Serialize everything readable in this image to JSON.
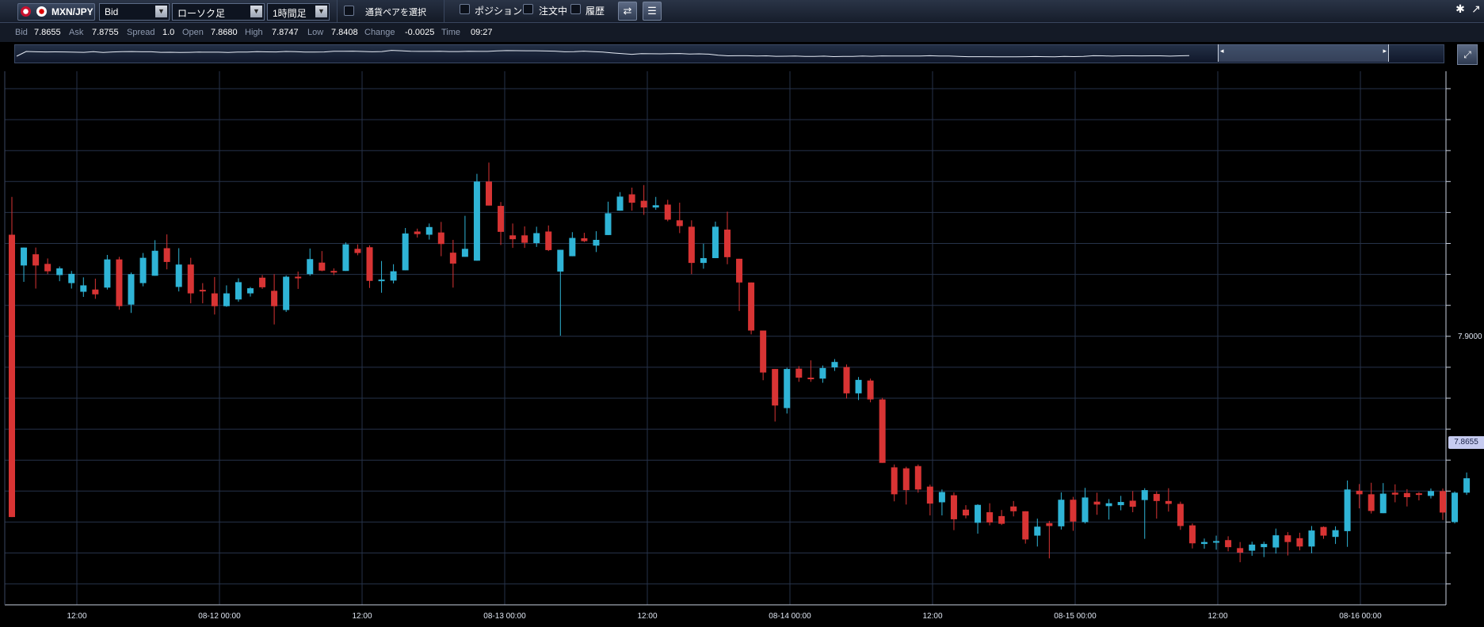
{
  "toolbar": {
    "pair": "MXN/JPY",
    "price_type": "Bid",
    "chart_type": "ローソク足",
    "timeframe": "1時間足",
    "select_pair_label": "通貨ペアを選択",
    "position_label": "ポジション",
    "orders_label": "注文中",
    "history_label": "履歴"
  },
  "info": {
    "bid_label": "Bid",
    "bid": "7.8655",
    "ask_label": "Ask",
    "ask": "7.8755",
    "spread_label": "Spread",
    "spread": "1.0",
    "open_label": "Open",
    "open": "7.8680",
    "high_label": "High",
    "high": "7.8747",
    "low_label": "Low",
    "low": "7.8408",
    "change_label": "Change",
    "change": "-0.0025",
    "time_label": "Time",
    "time": "09:27"
  },
  "axis": {
    "price_label": "7.9000",
    "current_price": "7.8655"
  },
  "colors": {
    "up": "#2fb4d6",
    "down": "#d83434",
    "grid": "#26324a"
  },
  "chart_data": {
    "type": "candlestick",
    "x_labels": [
      "12:00",
      "08-12 00:00",
      "12:00",
      "08-13 00:00",
      "12:00",
      "08-14 00:00",
      "12:00",
      "08-15 00:00",
      "12:00",
      "08-16 00:00"
    ],
    "y_labeled_tick": 7.9,
    "ylim": [
      7.822,
      7.99
    ],
    "candles": [
      [
        7.9375,
        7.8494,
        7.9493,
        7.8494
      ],
      [
        7.9279,
        7.9335,
        7.9335,
        7.9228
      ],
      [
        7.9314,
        7.9279,
        7.9335,
        7.9207
      ],
      [
        7.9284,
        7.9261,
        7.9301,
        7.9252
      ],
      [
        7.9249,
        7.927,
        7.9276,
        7.923
      ],
      [
        7.9224,
        7.9253,
        7.9262,
        7.9207
      ],
      [
        7.9197,
        7.9217,
        7.9242,
        7.9181
      ],
      [
        7.9204,
        7.9189,
        7.9238,
        7.9175
      ],
      [
        7.921,
        7.9298,
        7.9312,
        7.9204
      ],
      [
        7.9298,
        7.9152,
        7.9306,
        7.9141
      ],
      [
        7.9157,
        7.9252,
        7.9257,
        7.9131
      ],
      [
        7.9224,
        7.9303,
        7.9318,
        7.9214
      ],
      [
        7.9247,
        7.9325,
        7.9358,
        7.9247
      ],
      [
        7.9333,
        7.929,
        7.9376,
        7.9267
      ],
      [
        7.9212,
        7.9282,
        7.9333,
        7.9198
      ],
      [
        7.9282,
        7.9192,
        7.9303,
        7.9161
      ],
      [
        7.9203,
        7.9199,
        7.9224,
        7.9161
      ],
      [
        7.9192,
        7.9152,
        7.9243,
        7.9126
      ],
      [
        7.9152,
        7.9192,
        7.9217,
        7.915
      ],
      [
        7.9173,
        7.9227,
        7.9239,
        7.9166
      ],
      [
        7.9192,
        7.9208,
        7.9212,
        7.9182
      ],
      [
        7.9241,
        7.9211,
        7.9249,
        7.9206
      ],
      [
        7.92,
        7.9152,
        7.9252,
        7.9095
      ],
      [
        7.914,
        7.9244,
        7.9248,
        7.9134
      ],
      [
        7.9244,
        7.9241,
        7.926,
        7.9206
      ],
      [
        7.9252,
        7.9299,
        7.9332,
        7.9247
      ],
      [
        7.9288,
        7.9263,
        7.9324,
        7.9261
      ],
      [
        7.9262,
        7.9259,
        7.927,
        7.9249
      ],
      [
        7.9262,
        7.9345,
        7.9351,
        7.9262
      ],
      [
        7.9331,
        7.9318,
        7.9345,
        7.9311
      ],
      [
        7.9336,
        7.9231,
        7.9342,
        7.9209
      ],
      [
        7.9232,
        7.9235,
        7.9293,
        7.9194
      ],
      [
        7.9232,
        7.9261,
        7.9283,
        7.9223
      ],
      [
        7.9264,
        7.9379,
        7.9396,
        7.9264
      ],
      [
        7.9385,
        7.9377,
        7.9394,
        7.9366
      ],
      [
        7.9375,
        7.9399,
        7.941,
        7.936
      ],
      [
        7.9382,
        7.9346,
        7.9415,
        7.9308
      ],
      [
        7.9319,
        7.9285,
        7.9359,
        7.921
      ],
      [
        7.9306,
        7.9331,
        7.9434,
        7.9306
      ],
      [
        7.9294,
        7.9541,
        7.9565,
        7.9294
      ],
      [
        7.9541,
        7.9466,
        7.96,
        7.9466
      ],
      [
        7.9465,
        7.9384,
        7.9477,
        7.9343
      ],
      [
        7.9373,
        7.9361,
        7.941,
        7.9334
      ],
      [
        7.9373,
        7.935,
        7.9401,
        7.9334
      ],
      [
        7.9349,
        7.938,
        7.94,
        7.9337
      ],
      [
        7.9385,
        7.9327,
        7.9404,
        7.9324
      ],
      [
        7.926,
        7.9328,
        7.9328,
        7.906
      ],
      [
        7.9308,
        7.9365,
        7.9383,
        7.9308
      ],
      [
        7.9364,
        7.9355,
        7.9381,
        7.9352
      ],
      [
        7.9341,
        7.9359,
        7.9386,
        7.9321
      ],
      [
        7.9374,
        7.9442,
        7.9478,
        7.9374
      ],
      [
        7.945,
        7.9494,
        7.9508,
        7.945
      ],
      [
        7.9501,
        7.9475,
        7.9522,
        7.945
      ],
      [
        7.9481,
        7.946,
        7.953,
        7.9437
      ],
      [
        7.946,
        7.9467,
        7.9493,
        7.9453
      ],
      [
        7.9469,
        7.9422,
        7.9484,
        7.9417
      ],
      [
        7.942,
        7.9402,
        7.9475,
        7.938
      ],
      [
        7.94,
        7.9287,
        7.942,
        7.9252
      ],
      [
        7.9287,
        7.9302,
        7.9347,
        7.9269
      ],
      [
        7.9302,
        7.94,
        7.9416,
        7.9302
      ],
      [
        7.9391,
        7.9305,
        7.9447,
        7.9283
      ],
      [
        7.93,
        7.9226,
        7.93,
        7.9137
      ],
      [
        7.9226,
        7.9076,
        7.9226,
        7.9064
      ],
      [
        7.9076,
        7.8945,
        7.9076,
        7.8921
      ],
      [
        7.8956,
        7.8842,
        7.8956,
        7.8792
      ],
      [
        7.8834,
        7.8956,
        7.896,
        7.8817
      ],
      [
        7.8957,
        7.8929,
        7.8965,
        7.8916
      ],
      [
        7.8929,
        7.8926,
        7.8983,
        7.8916
      ],
      [
        7.8926,
        7.8959,
        7.8967,
        7.8913
      ],
      [
        7.8961,
        7.8978,
        7.8987,
        7.895
      ],
      [
        7.8962,
        7.888,
        7.897,
        7.8864
      ],
      [
        7.888,
        7.8922,
        7.8931,
        7.8859
      ],
      [
        7.892,
        7.8861,
        7.8926,
        7.8852
      ],
      [
        7.8861,
        7.8663,
        7.8866,
        7.8663
      ],
      [
        7.8649,
        7.8565,
        7.8658,
        7.8543
      ],
      [
        7.8646,
        7.8578,
        7.8651,
        7.8533
      ],
      [
        7.8653,
        7.858,
        7.8658,
        7.857
      ],
      [
        7.8589,
        7.8536,
        7.8595,
        7.8499
      ],
      [
        7.854,
        7.8572,
        7.858,
        7.8499
      ],
      [
        7.8562,
        7.8487,
        7.8571,
        7.8453
      ],
      [
        7.8517,
        7.8499,
        7.8531,
        7.849
      ],
      [
        7.8476,
        7.8532,
        7.8534,
        7.8442
      ],
      [
        7.8509,
        7.8477,
        7.8537,
        7.8468
      ],
      [
        7.8497,
        7.8473,
        7.8516,
        7.8469
      ],
      [
        7.8527,
        7.8512,
        7.8544,
        7.8496
      ],
      [
        7.8512,
        7.8424,
        7.8512,
        7.8411
      ],
      [
        7.8436,
        7.8464,
        7.8489,
        7.8402
      ],
      [
        7.8475,
        7.8466,
        7.8482,
        7.8365
      ],
      [
        7.8465,
        7.8548,
        7.8571,
        7.8455
      ],
      [
        7.8548,
        7.848,
        7.8557,
        7.8451
      ],
      [
        7.8478,
        7.8555,
        7.8585,
        7.8474
      ],
      [
        7.8542,
        7.8533,
        7.857,
        7.8501
      ],
      [
        7.8528,
        7.8537,
        7.855,
        7.8486
      ],
      [
        7.8531,
        7.8541,
        7.856,
        7.8515
      ],
      [
        7.8545,
        7.8526,
        7.8575,
        7.8509
      ],
      [
        7.8547,
        7.8578,
        7.8584,
        7.8426
      ],
      [
        7.8566,
        7.8544,
        7.8574,
        7.8489
      ],
      [
        7.8544,
        7.8535,
        7.8584,
        7.8511
      ],
      [
        7.8535,
        7.8466,
        7.8542,
        7.8454
      ],
      [
        7.8468,
        7.8412,
        7.8474,
        7.8396
      ],
      [
        7.841,
        7.8416,
        7.8427,
        7.8395
      ],
      [
        7.8414,
        7.8419,
        7.8436,
        7.8392
      ],
      [
        7.8422,
        7.84,
        7.8434,
        7.8387
      ],
      [
        7.8397,
        7.8383,
        7.8416,
        7.8353
      ],
      [
        7.8389,
        7.8408,
        7.8417,
        7.8373
      ],
      [
        7.84,
        7.841,
        7.8417,
        7.8369
      ],
      [
        7.8399,
        7.8437,
        7.8458,
        7.838
      ],
      [
        7.8437,
        7.8416,
        7.8447,
        7.8374
      ],
      [
        7.8428,
        7.8402,
        7.8445,
        7.839
      ],
      [
        7.8402,
        7.8452,
        7.8466,
        7.8381
      ],
      [
        7.8463,
        7.8436,
        7.8465,
        7.8426
      ],
      [
        7.8432,
        7.8453,
        7.8465,
        7.841
      ],
      [
        7.845,
        7.858,
        7.8608,
        7.8401
      ],
      [
        7.8576,
        7.8565,
        7.8597,
        7.8521
      ],
      [
        7.8565,
        7.8513,
        7.8601,
        7.8505
      ],
      [
        7.8506,
        7.8567,
        7.86,
        7.8506
      ],
      [
        7.857,
        7.8564,
        7.8596,
        7.854
      ],
      [
        7.8569,
        7.8556,
        7.8581,
        7.8527
      ],
      [
        7.8568,
        7.8566,
        7.8572,
        7.8546
      ],
      [
        7.856,
        7.8575,
        7.8583,
        7.8552
      ],
      [
        7.8575,
        7.8508,
        7.8583,
        7.8485
      ],
      [
        7.8478,
        7.857,
        7.8574,
        7.8474
      ],
      [
        7.857,
        7.8615,
        7.8633,
        7.8563
      ]
    ]
  }
}
